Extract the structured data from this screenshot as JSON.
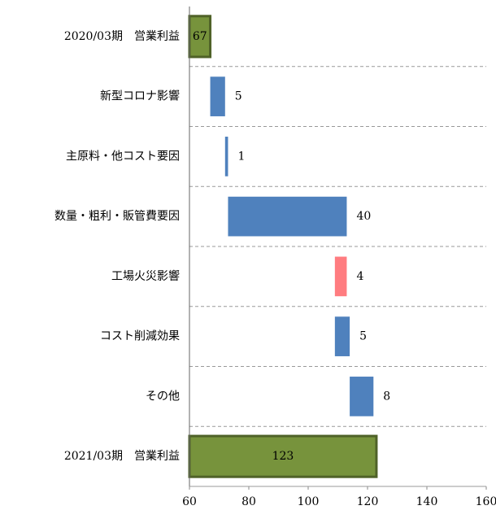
{
  "chart_data": {
    "type": "waterfall",
    "categories": [
      "2020/03期　営業利益",
      "新型コロナ影響",
      "主原料・他コスト要因",
      "数量・粗利・販管費要因",
      "工場火災影響",
      "コスト削減効果",
      "その他",
      "2021/03期　営業利益"
    ],
    "values": [
      67,
      5,
      1,
      40,
      -4,
      5,
      8,
      123
    ],
    "value_labels": [
      "67",
      "5",
      "1",
      "40",
      "4",
      "5",
      "8",
      "123"
    ],
    "colors": [
      "#77933c",
      "#4f81bd",
      "#4f81bd",
      "#4f81bd",
      "#ff7c80",
      "#4f81bd",
      "#4f81bd",
      "#77933c"
    ],
    "xlim": [
      60,
      160
    ],
    "xticks": [
      60,
      80,
      100,
      120,
      140,
      160
    ]
  }
}
